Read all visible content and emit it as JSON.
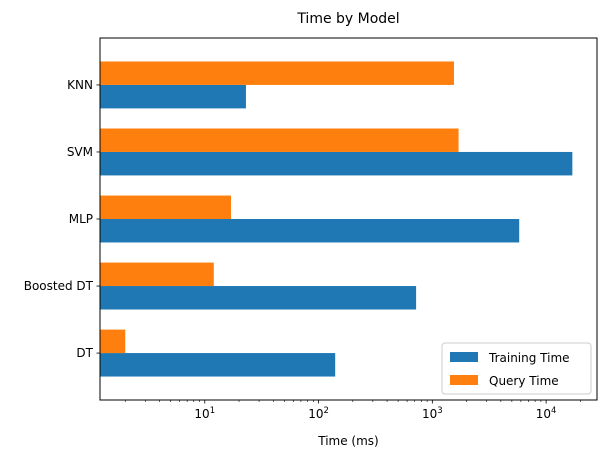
{
  "chart_data": {
    "type": "bar",
    "orientation": "horizontal",
    "title": "Time by Model",
    "xlabel": "Time (ms)",
    "ylabel": "",
    "xscale": "log",
    "xlim": [
      1.2,
      28000
    ],
    "grid": false,
    "legend_position": "lower-right",
    "categories": [
      "DT",
      "Boosted DT",
      "MLP",
      "SVM",
      "KNN"
    ],
    "series": [
      {
        "name": "Training Time",
        "color": "#1f77b4",
        "values": [
          140,
          720,
          5800,
          17000,
          23
        ]
      },
      {
        "name": "Query Time",
        "color": "#ff7f0e",
        "values": [
          2,
          12,
          17,
          1700,
          1550
        ]
      }
    ],
    "x_ticks": [
      {
        "value": 10,
        "base": "10",
        "exp": "1"
      },
      {
        "value": 100,
        "base": "10",
        "exp": "2"
      },
      {
        "value": 1000,
        "base": "10",
        "exp": "3"
      },
      {
        "value": 10000,
        "base": "10",
        "exp": "4"
      }
    ]
  }
}
